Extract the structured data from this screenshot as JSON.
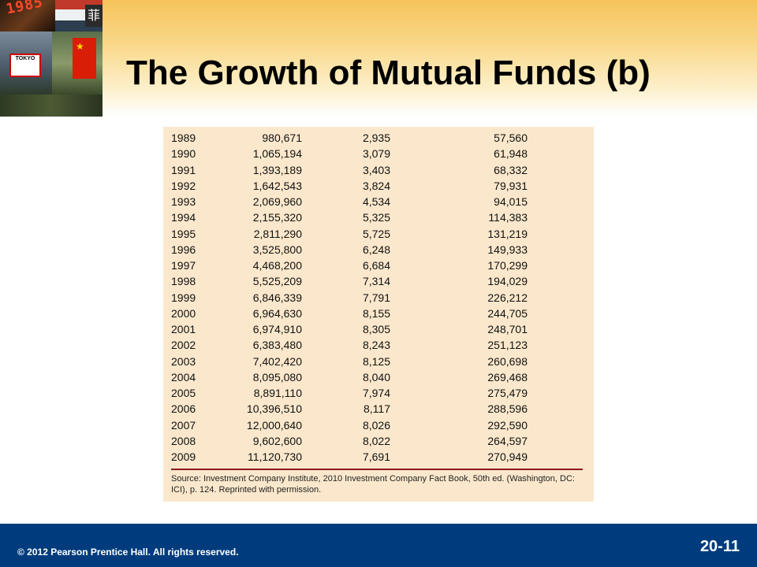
{
  "slide": {
    "title": "The Growth of Mutual Funds (b)",
    "slide_number": "20-11",
    "copyright": "© 2012 Pearson Prentice Hall. All rights reserved."
  },
  "photo": {
    "ticker_text": "1985",
    "sign_text": "TOKYO",
    "corner_glyph": "菲"
  },
  "table": {
    "rows": [
      {
        "year": "1989",
        "assets": "980,671",
        "funds": "2,935",
        "accounts": "57,560"
      },
      {
        "year": "1990",
        "assets": "1,065,194",
        "funds": "3,079",
        "accounts": "61,948"
      },
      {
        "year": "1991",
        "assets": "1,393,189",
        "funds": "3,403",
        "accounts": "68,332"
      },
      {
        "year": "1992",
        "assets": "1,642,543",
        "funds": "3,824",
        "accounts": "79,931"
      },
      {
        "year": "1993",
        "assets": "2,069,960",
        "funds": "4,534",
        "accounts": "94,015"
      },
      {
        "year": "1994",
        "assets": "2,155,320",
        "funds": "5,325",
        "accounts": "114,383"
      },
      {
        "year": "1995",
        "assets": "2,811,290",
        "funds": "5,725",
        "accounts": "131,219"
      },
      {
        "year": "1996",
        "assets": "3,525,800",
        "funds": "6,248",
        "accounts": "149,933"
      },
      {
        "year": "1997",
        "assets": "4,468,200",
        "funds": "6,684",
        "accounts": "170,299"
      },
      {
        "year": "1998",
        "assets": "5,525,209",
        "funds": "7,314",
        "accounts": "194,029"
      },
      {
        "year": "1999",
        "assets": "6,846,339",
        "funds": "7,791",
        "accounts": "226,212"
      },
      {
        "year": "2000",
        "assets": "6,964,630",
        "funds": "8,155",
        "accounts": "244,705"
      },
      {
        "year": "2001",
        "assets": "6,974,910",
        "funds": "8,305",
        "accounts": "248,701"
      },
      {
        "year": "2002",
        "assets": "6,383,480",
        "funds": "8,243",
        "accounts": "251,123"
      },
      {
        "year": "2003",
        "assets": "7,402,420",
        "funds": "8,125",
        "accounts": "260,698"
      },
      {
        "year": "2004",
        "assets": "8,095,080",
        "funds": "8,040",
        "accounts": "269,468"
      },
      {
        "year": "2005",
        "assets": "8,891,110",
        "funds": "7,974",
        "accounts": "275,479"
      },
      {
        "year": "2006",
        "assets": "10,396,510",
        "funds": "8,117",
        "accounts": "288,596"
      },
      {
        "year": "2007",
        "assets": "12,000,640",
        "funds": "8,026",
        "accounts": "292,590"
      },
      {
        "year": "2008",
        "assets": "9,602,600",
        "funds": "8,022",
        "accounts": "264,597"
      },
      {
        "year": "2009",
        "assets": "11,120,730",
        "funds": "7,691",
        "accounts": "270,949"
      }
    ],
    "source_note": "Source: Investment Company Institute, 2010 Investment Company Fact Book, 50th ed. (Washington, DC: ICI), p. 124. Reprinted with permission."
  },
  "colors": {
    "header_gold": "#f6c35a",
    "table_background": "#fbe8cc",
    "source_rule": "#8b1a1a",
    "footer_blue": "#003c7d"
  }
}
